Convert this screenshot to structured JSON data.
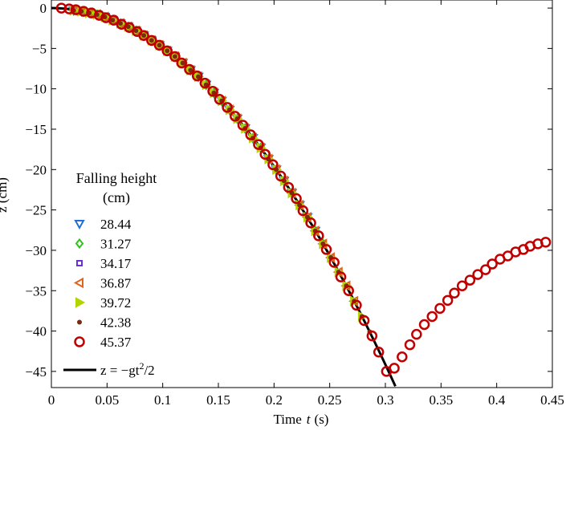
{
  "chart_data": {
    "type": "scatter",
    "xlabel_prefix": "Time",
    "xlabel_var": "t",
    "xlabel_unit": "(s)",
    "ylabel": "z (cm)",
    "xlim": [
      0,
      0.45
    ],
    "ylim": [
      -47,
      1
    ],
    "x_ticks": [
      0,
      0.05,
      0.1,
      0.15,
      0.2,
      0.25,
      0.3,
      0.35,
      0.4,
      0.45
    ],
    "x_tick_labels": [
      "0",
      "0.05",
      "0.1",
      "0.15",
      "0.2",
      "0.25",
      "0.3",
      "0.35",
      "0.4",
      "0.45"
    ],
    "y_ticks": [
      0,
      -5,
      -10,
      -15,
      -20,
      -25,
      -30,
      -35,
      -40,
      -45
    ],
    "y_tick_labels": [
      "0",
      "−5",
      "−10",
      "−15",
      "−20",
      "−25",
      "−30",
      "−35",
      "−40",
      "−45"
    ],
    "legend_title_line1": "Falling height",
    "legend_title_line2": "(cm)",
    "legend_placement": "left-middle",
    "model_curve": {
      "label_main": "z = −gt",
      "label_exp": "2",
      "label_tail": "/2",
      "g_cm_per_s2": 981,
      "t_range": [
        0,
        0.309
      ],
      "color": "#000000"
    },
    "series": [
      {
        "name": "28.44",
        "marker": "triangle-down",
        "color": "#1f6fd1",
        "x": [
          0.02,
          0.027,
          0.034,
          0.041,
          0.048,
          0.055,
          0.062,
          0.069,
          0.076,
          0.083,
          0.09,
          0.097,
          0.104,
          0.111,
          0.118,
          0.125,
          0.132,
          0.139,
          0.146,
          0.153,
          0.16,
          0.167,
          0.174,
          0.181,
          0.188,
          0.195,
          0.202,
          0.209,
          0.216,
          0.223,
          0.23,
          0.237
        ],
        "y": [
          -0.3,
          -0.4,
          -0.6,
          -0.8,
          -1.1,
          -1.5,
          -1.9,
          -2.3,
          -2.8,
          -3.4,
          -4.0,
          -4.6,
          -5.3,
          -6.0,
          -6.8,
          -7.7,
          -8.5,
          -9.5,
          -10.5,
          -11.5,
          -12.6,
          -13.7,
          -14.9,
          -16.1,
          -17.3,
          -18.7,
          -20.0,
          -21.4,
          -22.9,
          -24.4,
          -25.9,
          -27.6
        ]
      },
      {
        "name": "31.27",
        "marker": "diamond",
        "color": "#2ec21c",
        "x": [
          0.02,
          0.027,
          0.034,
          0.041,
          0.048,
          0.055,
          0.062,
          0.069,
          0.076,
          0.083,
          0.09,
          0.097,
          0.104,
          0.111,
          0.118,
          0.125,
          0.132,
          0.139,
          0.146,
          0.153,
          0.16,
          0.167,
          0.174,
          0.181,
          0.188,
          0.195,
          0.202,
          0.209,
          0.216,
          0.223,
          0.23,
          0.237,
          0.244
        ],
        "y": [
          -0.3,
          -0.4,
          -0.6,
          -0.8,
          -1.1,
          -1.5,
          -1.9,
          -2.3,
          -2.8,
          -3.4,
          -4.0,
          -4.6,
          -5.3,
          -6.0,
          -6.8,
          -7.7,
          -8.5,
          -9.5,
          -10.5,
          -11.5,
          -12.6,
          -13.7,
          -14.9,
          -16.1,
          -17.3,
          -18.7,
          -20.0,
          -21.4,
          -22.9,
          -24.4,
          -25.9,
          -27.6,
          -29.2
        ]
      },
      {
        "name": "34.17",
        "marker": "square",
        "color": "#6a2fd6",
        "x": [
          0.02,
          0.027,
          0.034,
          0.041,
          0.048,
          0.055,
          0.062,
          0.069,
          0.076,
          0.083,
          0.09,
          0.097,
          0.104,
          0.111,
          0.118,
          0.125,
          0.132,
          0.139,
          0.146,
          0.153,
          0.16,
          0.167,
          0.174,
          0.181,
          0.188,
          0.195,
          0.202,
          0.209,
          0.216,
          0.223,
          0.23,
          0.237,
          0.244,
          0.251
        ],
        "y": [
          -0.3,
          -0.4,
          -0.6,
          -0.8,
          -1.1,
          -1.5,
          -1.9,
          -2.3,
          -2.8,
          -3.4,
          -4.0,
          -4.6,
          -5.3,
          -6.0,
          -6.8,
          -7.7,
          -8.5,
          -9.5,
          -10.5,
          -11.5,
          -12.6,
          -13.7,
          -14.9,
          -16.1,
          -17.3,
          -18.7,
          -20.0,
          -21.4,
          -22.9,
          -24.4,
          -25.9,
          -27.6,
          -29.2,
          -30.9
        ]
      },
      {
        "name": "36.87",
        "marker": "triangle-left",
        "color": "#e0641a",
        "x": [
          0.02,
          0.027,
          0.034,
          0.041,
          0.048,
          0.055,
          0.062,
          0.069,
          0.076,
          0.083,
          0.09,
          0.097,
          0.104,
          0.111,
          0.118,
          0.125,
          0.132,
          0.139,
          0.146,
          0.153,
          0.16,
          0.167,
          0.174,
          0.181,
          0.188,
          0.195,
          0.202,
          0.209,
          0.216,
          0.223,
          0.23,
          0.237,
          0.244,
          0.251,
          0.258,
          0.265,
          0.272
        ],
        "y": [
          -0.3,
          -0.4,
          -0.6,
          -0.8,
          -1.1,
          -1.5,
          -1.9,
          -2.3,
          -2.8,
          -3.4,
          -4.0,
          -4.6,
          -5.3,
          -6.0,
          -6.8,
          -7.7,
          -8.5,
          -9.5,
          -10.5,
          -11.5,
          -12.6,
          -13.7,
          -14.9,
          -16.1,
          -17.3,
          -18.7,
          -20.0,
          -21.4,
          -22.9,
          -24.4,
          -25.9,
          -27.6,
          -29.2,
          -30.9,
          -32.7,
          -34.4,
          -36.3
        ]
      },
      {
        "name": "39.72",
        "marker": "triangle-right",
        "color": "#b3d400",
        "x": [
          0.02,
          0.027,
          0.034,
          0.041,
          0.048,
          0.055,
          0.062,
          0.069,
          0.076,
          0.083,
          0.09,
          0.097,
          0.104,
          0.111,
          0.118,
          0.125,
          0.132,
          0.139,
          0.146,
          0.153,
          0.16,
          0.167,
          0.174,
          0.181,
          0.188,
          0.195,
          0.202,
          0.209,
          0.216,
          0.223,
          0.23,
          0.237,
          0.244,
          0.251,
          0.258,
          0.265,
          0.272,
          0.279
        ],
        "y": [
          -0.3,
          -0.4,
          -0.6,
          -0.8,
          -1.1,
          -1.5,
          -1.9,
          -2.3,
          -2.8,
          -3.4,
          -4.0,
          -4.6,
          -5.3,
          -6.0,
          -6.8,
          -7.7,
          -8.5,
          -9.5,
          -10.5,
          -11.5,
          -12.6,
          -13.7,
          -14.9,
          -16.1,
          -17.3,
          -18.7,
          -20.0,
          -21.4,
          -22.9,
          -24.4,
          -25.9,
          -27.6,
          -29.2,
          -30.9,
          -32.7,
          -34.4,
          -36.3,
          -38.2
        ]
      },
      {
        "name": "42.38",
        "marker": "dot",
        "color": "#7a2c0c",
        "x": [
          0.02,
          0.027,
          0.034,
          0.041,
          0.048,
          0.055,
          0.062,
          0.069,
          0.076,
          0.083,
          0.09,
          0.097,
          0.104,
          0.111,
          0.118,
          0.125,
          0.132,
          0.139,
          0.146,
          0.153,
          0.16,
          0.167,
          0.174,
          0.181,
          0.188,
          0.195,
          0.202,
          0.209,
          0.216,
          0.223,
          0.23,
          0.237,
          0.244,
          0.251,
          0.258,
          0.265,
          0.272,
          0.279,
          0.286
        ],
        "y": [
          -0.3,
          -0.4,
          -0.6,
          -0.8,
          -1.1,
          -1.5,
          -1.9,
          -2.3,
          -2.8,
          -3.4,
          -4.0,
          -4.6,
          -5.3,
          -6.0,
          -6.8,
          -7.7,
          -8.5,
          -9.5,
          -10.5,
          -11.5,
          -12.6,
          -13.7,
          -14.9,
          -16.1,
          -17.3,
          -18.7,
          -20.0,
          -21.4,
          -22.9,
          -24.4,
          -25.9,
          -27.6,
          -29.2,
          -30.9,
          -32.7,
          -34.4,
          -36.3,
          -38.2,
          -40.1
        ]
      },
      {
        "name": "45.37",
        "marker": "circle",
        "color": "#c00000",
        "x": [
          0.009,
          0.016,
          0.022,
          0.029,
          0.036,
          0.043,
          0.049,
          0.056,
          0.063,
          0.07,
          0.077,
          0.083,
          0.09,
          0.097,
          0.104,
          0.111,
          0.117,
          0.124,
          0.131,
          0.138,
          0.145,
          0.151,
          0.158,
          0.165,
          0.172,
          0.179,
          0.186,
          0.192,
          0.199,
          0.206,
          0.213,
          0.22,
          0.226,
          0.233,
          0.24,
          0.247,
          0.254,
          0.26,
          0.267,
          0.274,
          0.281,
          0.288,
          0.294,
          0.301,
          0.308,
          0.315,
          0.322,
          0.328,
          0.335,
          0.342,
          0.349,
          0.356,
          0.362,
          0.369,
          0.376,
          0.383,
          0.39,
          0.396,
          0.403,
          0.41,
          0.417,
          0.424,
          0.43,
          0.437,
          0.444
        ],
        "y": [
          0,
          -0.1,
          -0.2,
          -0.4,
          -0.6,
          -0.9,
          -1.2,
          -1.5,
          -2.0,
          -2.4,
          -2.9,
          -3.4,
          -4.0,
          -4.6,
          -5.3,
          -6.0,
          -6.8,
          -7.6,
          -8.4,
          -9.3,
          -10.3,
          -11.3,
          -12.3,
          -13.4,
          -14.5,
          -15.7,
          -16.9,
          -18.1,
          -19.4,
          -20.8,
          -22.2,
          -23.6,
          -25.1,
          -26.6,
          -28.2,
          -29.9,
          -31.5,
          -33.3,
          -35.0,
          -36.8,
          -38.7,
          -40.6,
          -42.6,
          -45.0,
          -44.6,
          -43.2,
          -41.7,
          -40.4,
          -39.2,
          -38.2,
          -37.2,
          -36.2,
          -35.3,
          -34.4,
          -33.7,
          -33.0,
          -32.4,
          -31.7,
          -31.1,
          -30.7,
          -30.2,
          -29.9,
          -29.5,
          -29.2,
          -29.0
        ]
      }
    ]
  }
}
